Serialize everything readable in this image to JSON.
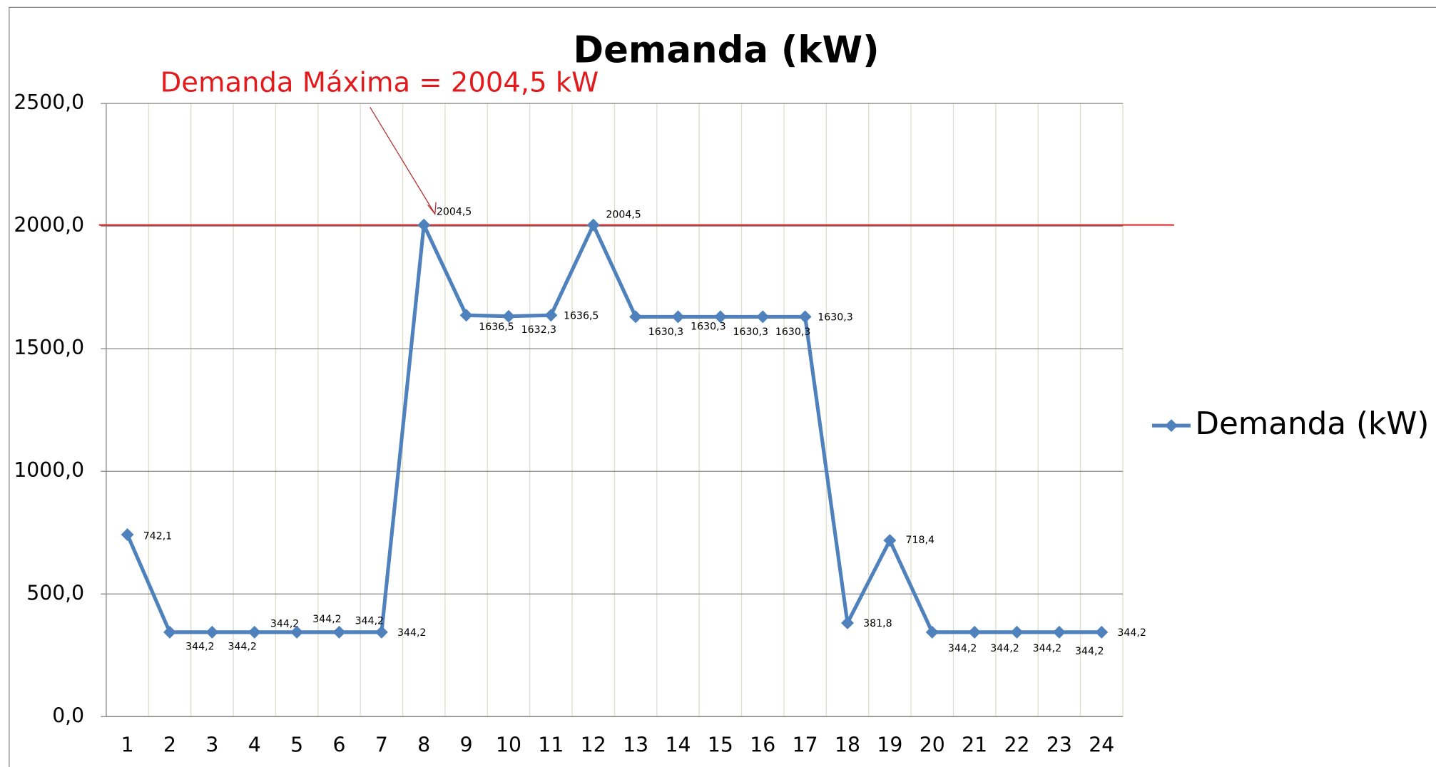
{
  "chart_data": {
    "type": "line",
    "title": "Demanda (kW)",
    "annotation": {
      "text": "Demanda Máxima = 2004,5 kW",
      "value": 2004.5,
      "color": "#e31a1c"
    },
    "categories": [
      "1",
      "2",
      "3",
      "4",
      "5",
      "6",
      "7",
      "8",
      "9",
      "10",
      "11",
      "12",
      "13",
      "14",
      "15",
      "16",
      "17",
      "18",
      "19",
      "20",
      "21",
      "22",
      "23",
      "24"
    ],
    "series": [
      {
        "name": "Demanda (kW)",
        "color": "#4f81bd",
        "values": [
          742.1,
          344.2,
          344.2,
          344.2,
          344.2,
          344.2,
          344.2,
          2004.5,
          1636.5,
          1632.3,
          1636.5,
          2004.5,
          1630.3,
          1630.3,
          1630.3,
          1630.3,
          1630.3,
          381.8,
          718.4,
          344.2,
          344.2,
          344.2,
          344.2,
          344.2
        ],
        "value_labels": [
          "742,1",
          "344,2",
          "344,2",
          "344,2",
          "344,2",
          "344,2",
          "344,2",
          "2004,5",
          "1636,5",
          "1632,3",
          "1636,5",
          "2004,5",
          "1630,3",
          "1630,3",
          "1630,3",
          "1630,3",
          "1630,3",
          "381,8",
          "718,4",
          "344,2",
          "344,2",
          "344,2",
          "344,2",
          "344,2"
        ]
      }
    ],
    "ylim": [
      0,
      2500
    ],
    "yticks": [
      {
        "value": 0,
        "label": "0,0"
      },
      {
        "value": 500,
        "label": "500,0"
      },
      {
        "value": 1000,
        "label": "1000,0"
      },
      {
        "value": 1500,
        "label": "1500,0"
      },
      {
        "value": 2000,
        "label": "2000,0"
      },
      {
        "value": 2500,
        "label": "2500,0"
      }
    ],
    "grid": true,
    "legend": "right"
  }
}
